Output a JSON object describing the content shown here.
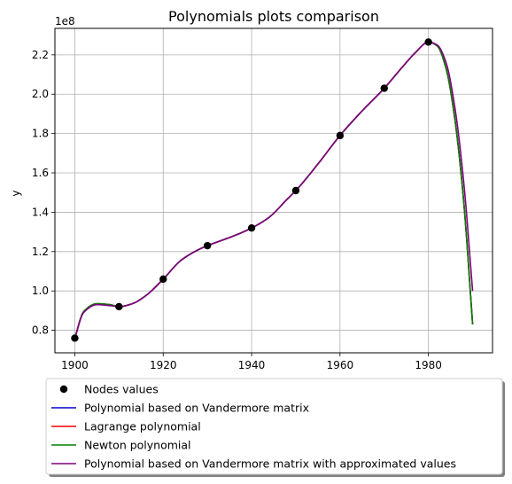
{
  "chart_data": {
    "type": "line",
    "title": "Polynomials plots comparison",
    "xlabel": "",
    "ylabel": "y",
    "y_offset_label": "1e8",
    "y_scale": 100000000,
    "xlim": [
      1895.5,
      1994.5
    ],
    "ylim": [
      0.6855,
      2.3345
    ],
    "x_ticks": [
      1900,
      1920,
      1940,
      1960,
      1980
    ],
    "x_tick_labels": [
      "1900",
      "1920",
      "1940",
      "1960",
      "1980"
    ],
    "y_ticks": [
      0.8,
      1.0,
      1.2,
      1.4,
      1.6,
      1.8,
      2.0,
      2.2
    ],
    "y_tick_labels": [
      "0.8",
      "1.0",
      "1.2",
      "1.4",
      "1.6",
      "1.8",
      "2.0",
      "2.2"
    ],
    "grid": true,
    "legend_position": "below",
    "nodes": {
      "name": "Nodes values",
      "color": "#000000",
      "x": [
        1900,
        1910,
        1920,
        1930,
        1940,
        1950,
        1960,
        1970,
        1980
      ],
      "y": [
        0.76,
        0.92,
        1.06,
        1.23,
        1.32,
        1.51,
        1.79,
        2.03,
        2.265
      ]
    },
    "series": [
      {
        "name": "Polynomial based on Vandermore matrix",
        "color": "#0000cc",
        "x": [
          1900,
          1902,
          1905,
          1908,
          1910,
          1913,
          1916,
          1920,
          1924,
          1928,
          1930,
          1933,
          1936,
          1940,
          1944,
          1948,
          1950,
          1955,
          1960,
          1965,
          1970,
          1974,
          1977,
          1980,
          1982,
          1984,
          1986,
          1988,
          1990
        ],
        "y": [
          0.76,
          0.895,
          0.935,
          0.93,
          0.92,
          0.935,
          0.975,
          1.06,
          1.155,
          1.21,
          1.23,
          1.255,
          1.28,
          1.32,
          1.375,
          1.465,
          1.51,
          1.645,
          1.79,
          1.915,
          2.03,
          2.135,
          2.21,
          2.265,
          2.245,
          2.13,
          1.87,
          1.45,
          0.83
        ]
      },
      {
        "name": "Lagrange polynomial",
        "color": "#ff0000",
        "x": [
          1900,
          1902,
          1905,
          1908,
          1910,
          1913,
          1916,
          1920,
          1924,
          1928,
          1930,
          1933,
          1936,
          1940,
          1944,
          1948,
          1950,
          1955,
          1960,
          1965,
          1970,
          1974,
          1977,
          1980,
          1982,
          1984,
          1986,
          1988,
          1990
        ],
        "y": [
          0.76,
          0.895,
          0.935,
          0.93,
          0.92,
          0.935,
          0.975,
          1.06,
          1.155,
          1.21,
          1.23,
          1.255,
          1.28,
          1.32,
          1.375,
          1.465,
          1.51,
          1.645,
          1.79,
          1.915,
          2.03,
          2.135,
          2.21,
          2.265,
          2.245,
          2.13,
          1.87,
          1.45,
          0.83
        ]
      },
      {
        "name": "Newton polynomial",
        "color": "#008000",
        "x": [
          1900,
          1902,
          1905,
          1908,
          1910,
          1913,
          1916,
          1920,
          1924,
          1928,
          1930,
          1933,
          1936,
          1940,
          1944,
          1948,
          1950,
          1955,
          1960,
          1965,
          1970,
          1974,
          1977,
          1980,
          1982,
          1984,
          1986,
          1988,
          1990
        ],
        "y": [
          0.76,
          0.895,
          0.935,
          0.93,
          0.92,
          0.935,
          0.975,
          1.06,
          1.155,
          1.21,
          1.23,
          1.255,
          1.28,
          1.32,
          1.375,
          1.465,
          1.51,
          1.645,
          1.79,
          1.915,
          2.03,
          2.135,
          2.21,
          2.265,
          2.245,
          2.13,
          1.87,
          1.45,
          0.83
        ]
      },
      {
        "name": "Polynomial based on Vandermore matrix with approximated values",
        "color": "#800080",
        "x": [
          1900,
          1902,
          1905,
          1908,
          1910,
          1913,
          1916,
          1920,
          1924,
          1928,
          1930,
          1933,
          1936,
          1940,
          1944,
          1948,
          1950,
          1955,
          1960,
          1965,
          1970,
          1974,
          1977,
          1980,
          1982,
          1984,
          1986,
          1988,
          1990
        ],
        "y": [
          0.76,
          0.89,
          0.93,
          0.925,
          0.92,
          0.935,
          0.975,
          1.06,
          1.155,
          1.21,
          1.23,
          1.255,
          1.28,
          1.32,
          1.375,
          1.465,
          1.51,
          1.645,
          1.79,
          1.915,
          2.03,
          2.135,
          2.21,
          2.265,
          2.25,
          2.16,
          1.93,
          1.55,
          1.0
        ]
      }
    ]
  }
}
